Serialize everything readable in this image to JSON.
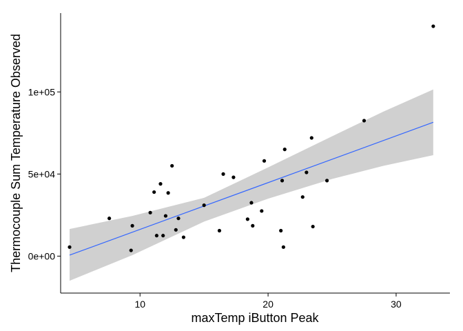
{
  "chart_data": {
    "type": "scatter",
    "xlabel": "maxTemp iButton Peak",
    "ylabel": "Thermocouple Sum Temperature Observed",
    "xlim": [
      3.8,
      34.2
    ],
    "ylim": [
      -22500,
      148000
    ],
    "x_ticks": [
      10,
      20,
      30
    ],
    "x_tick_labels": [
      "10",
      "20",
      "30"
    ],
    "y_ticks": [
      0,
      50000,
      100000
    ],
    "y_tick_labels": [
      "0e+00",
      "5e+04",
      "1e+05"
    ],
    "grid": false,
    "points": {
      "x": [
        4.5,
        7.6,
        9.3,
        9.4,
        10.8,
        11.1,
        11.3,
        11.6,
        11.8,
        12.0,
        12.2,
        12.5,
        12.8,
        13.0,
        13.4,
        15.0,
        16.2,
        16.5,
        17.3,
        18.4,
        18.7,
        18.8,
        19.5,
        19.7,
        21.0,
        21.1,
        21.2,
        21.3,
        22.7,
        23.0,
        23.4,
        23.5,
        24.6,
        27.5,
        32.9
      ],
      "y": [
        5500,
        23000,
        3500,
        18500,
        26500,
        39000,
        12500,
        44000,
        12500,
        24500,
        38500,
        55000,
        16000,
        23000,
        11500,
        31000,
        15500,
        50000,
        48000,
        22500,
        32500,
        18500,
        27500,
        58000,
        15500,
        46000,
        5500,
        65000,
        36000,
        51000,
        72000,
        18000,
        46000,
        82500,
        140000
      ]
    },
    "series": [
      {
        "type": "smooth-linear",
        "color": "#3366FF",
        "x": [
          4.5,
          32.9
        ],
        "y": [
          600,
          81500
        ],
        "band_x": [
          4.5,
          9.4,
          15.0,
          20.0,
          25.0,
          29.0,
          32.9
        ],
        "band_lower": [
          -15000,
          600,
          21000,
          35000,
          47000,
          55000,
          61500
        ],
        "band_upper": [
          16500,
          24500,
          35500,
          54000,
          73000,
          88000,
          101500
        ]
      }
    ],
    "point_color": "#000000",
    "band_color": "#d0d0d0"
  }
}
